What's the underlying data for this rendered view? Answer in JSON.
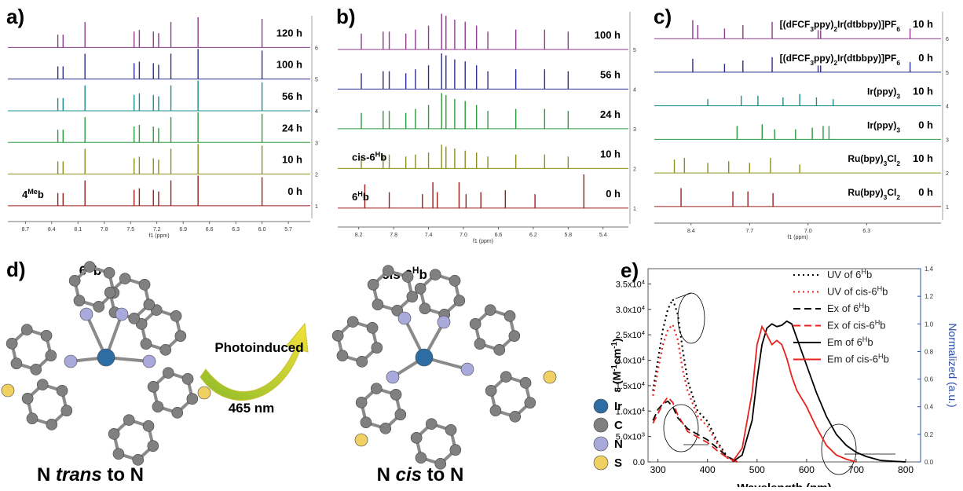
{
  "chart_data": [
    {
      "type": "nmr",
      "label": "a)",
      "xlabel": "f1 (ppm)",
      "xlim": [
        8.9,
        5.45
      ],
      "xticks": [
        8.7,
        8.4,
        8.1,
        7.8,
        7.5,
        7.2,
        6.9,
        6.6,
        6.3,
        {
          "value": 6,
          "label": "6.0"
        },
        5.7
      ],
      "ylim": [
        0.6,
        7.0
      ],
      "yticks": [
        6,
        5,
        4,
        3,
        2,
        1
      ],
      "series": [
        {
          "name": "120 h",
          "color": "#8e3a8e",
          "x": [
            8.33,
            8.27,
            8.02,
            7.46,
            7.4,
            7.24,
            7.18,
            7.04,
            6.73,
            6.0
          ],
          "values": [
            6.4,
            6.4,
            6.8,
            6.5,
            6.55,
            6.5,
            6.45,
            6.8,
            6.95,
            6.9
          ]
        },
        {
          "name": "100 h",
          "color": "#2e2e8e",
          "x": [
            8.33,
            8.27,
            8.02,
            7.46,
            7.4,
            7.24,
            7.18,
            7.04,
            6.73,
            6.0
          ],
          "values": [
            5.4,
            5.4,
            5.8,
            5.5,
            5.55,
            5.5,
            5.45,
            5.8,
            5.95,
            5.9
          ]
        },
        {
          "name": "56 h",
          "color": "#1f8c8c",
          "x": [
            8.33,
            8.27,
            8.02,
            7.46,
            7.4,
            7.24,
            7.18,
            7.04,
            6.73,
            6.0
          ],
          "values": [
            4.4,
            4.4,
            4.8,
            4.5,
            4.55,
            4.5,
            4.45,
            4.8,
            4.95,
            4.9
          ]
        },
        {
          "name": "24 h",
          "color": "#2e9a3e",
          "x": [
            8.33,
            8.27,
            8.02,
            7.46,
            7.4,
            7.24,
            7.18,
            7.04,
            6.73,
            6.0
          ],
          "values": [
            3.4,
            3.4,
            3.8,
            3.5,
            3.55,
            3.5,
            3.45,
            3.8,
            3.95,
            3.9
          ]
        },
        {
          "name": "10 h",
          "color": "#8a8f1e",
          "x": [
            8.33,
            8.27,
            8.02,
            7.46,
            7.4,
            7.24,
            7.18,
            7.04,
            6.73,
            6.0
          ],
          "values": [
            2.4,
            2.4,
            2.8,
            2.5,
            2.55,
            2.5,
            2.45,
            2.8,
            2.95,
            2.9
          ]
        },
        {
          "name": "0 h",
          "color": "#9a1e1e",
          "annotation": [
            "4",
            "Me",
            "b"
          ],
          "x": [
            8.33,
            8.27,
            8.02,
            7.46,
            7.4,
            7.24,
            7.18,
            7.04,
            6.73,
            6.0
          ],
          "values": [
            1.4,
            1.4,
            1.8,
            1.5,
            1.55,
            1.5,
            1.45,
            1.8,
            1.95,
            1.9
          ]
        }
      ]
    },
    {
      "type": "nmr",
      "label": "b)",
      "xlabel": "f1 (ppm)",
      "xlim": [
        8.44,
        5.11
      ],
      "xticks": [
        8.2,
        7.8,
        7.4,
        {
          "value": 7,
          "label": "7.0"
        },
        6.6,
        6.2,
        5.8,
        5.4
      ],
      "ylim": [
        0.6,
        5.95
      ],
      "yticks": [
        5,
        4,
        3,
        2,
        1
      ],
      "series": [
        {
          "name": "100 h",
          "color": "#8e3a8e",
          "x": [
            8.17,
            7.92,
            7.85,
            7.66,
            7.55,
            7.4,
            7.25,
            7.2,
            7.1,
            6.98,
            6.85,
            6.72,
            6.4,
            6.07,
            5.8
          ],
          "values": [
            5.4,
            5.45,
            5.45,
            5.4,
            5.5,
            5.6,
            5.9,
            5.85,
            5.75,
            5.7,
            5.6,
            5.45,
            5.5,
            5.5,
            5.45
          ]
        },
        {
          "name": "56 h",
          "color": "#2e2e8e",
          "x": [
            8.17,
            7.92,
            7.85,
            7.66,
            7.55,
            7.4,
            7.25,
            7.2,
            7.1,
            6.98,
            6.85,
            6.72,
            6.4,
            6.07,
            5.8
          ],
          "values": [
            4.4,
            4.45,
            4.45,
            4.4,
            4.5,
            4.6,
            4.9,
            4.85,
            4.75,
            4.7,
            4.6,
            4.45,
            4.5,
            4.5,
            4.45
          ]
        },
        {
          "name": "24 h",
          "color": "#2e9a3e",
          "x": [
            8.17,
            7.92,
            7.85,
            7.66,
            7.55,
            7.4,
            7.25,
            7.2,
            7.1,
            6.98,
            6.85,
            6.72,
            6.4,
            6.07,
            5.8
          ],
          "values": [
            3.4,
            3.45,
            3.45,
            3.4,
            3.5,
            3.6,
            3.9,
            3.85,
            3.75,
            3.7,
            3.6,
            3.45,
            3.5,
            3.5,
            3.45
          ]
        },
        {
          "name": "10 h",
          "color": "#8a8f1e",
          "annotation": [
            "cis-6",
            "H",
            "b"
          ],
          "x": [
            8.17,
            7.92,
            7.85,
            7.66,
            7.55,
            7.4,
            7.25,
            7.2,
            7.1,
            6.98,
            6.85,
            6.72,
            6.4,
            6.07,
            5.8
          ],
          "values": [
            2.3,
            2.35,
            2.35,
            2.3,
            2.35,
            2.4,
            2.6,
            2.55,
            2.5,
            2.45,
            2.4,
            2.3,
            2.35,
            2.35,
            2.3
          ]
        },
        {
          "name": "0 h",
          "color": "#9a1e1e",
          "annotation": [
            "6",
            "H",
            "b"
          ],
          "x": [
            8.13,
            7.85,
            7.47,
            7.35,
            7.3,
            7.05,
            6.97,
            6.8,
            6.52,
            6.18,
            5.62
          ],
          "values": [
            1.6,
            1.4,
            1.35,
            1.65,
            1.4,
            1.65,
            1.35,
            1.4,
            1.45,
            1.35,
            1.85
          ]
        }
      ]
    },
    {
      "type": "nmr",
      "label": "c)",
      "xlabel": "f1 (ppm)",
      "xlim": [
        8.84,
        5.41
      ],
      "xticks": [
        8.4,
        7.7,
        {
          "value": 7,
          "label": "7.0"
        },
        6.3
      ],
      "ylim": [
        0.6,
        6.8
      ],
      "yticks": [
        6,
        5,
        4,
        3,
        2,
        1
      ],
      "series": [
        {
          "name": "10 h",
          "compound": [
            "[(dFCF",
            "3",
            "ppy)",
            "2",
            "Ir(dtbbpy)]PF",
            "6"
          ],
          "color": "#8e3a8e",
          "x": [
            8.38,
            8.32,
            8.0,
            7.78,
            7.43,
            6.88,
            6.85,
            5.78
          ],
          "values": [
            6.55,
            6.4,
            6.3,
            6.4,
            6.5,
            6.25,
            6.25,
            6.3
          ]
        },
        {
          "name": "0 h",
          "compound": [
            "[(dFCF",
            "3",
            "ppy)",
            "2",
            "Ir(dtbbpy)]PF",
            "6"
          ],
          "color": "#2e2e8e",
          "x": [
            8.38,
            8.0,
            7.78,
            7.43,
            6.88,
            6.85,
            5.78
          ],
          "values": [
            5.4,
            5.25,
            5.35,
            5.45,
            5.2,
            5.2,
            5.3
          ]
        },
        {
          "name": "10 h",
          "compound": [
            "Ir(ppy)",
            "3"
          ],
          "color": "#1f8c8c",
          "x": [
            8.2,
            7.8,
            7.6,
            7.3,
            7.1,
            6.9,
            6.7
          ],
          "values": [
            4.2,
            4.3,
            4.3,
            4.25,
            4.35,
            4.25,
            4.2
          ]
        },
        {
          "name": "0 h",
          "compound": [
            "Ir(ppy)",
            "3"
          ],
          "color": "#2e9a3e",
          "x": [
            7.85,
            7.55,
            7.4,
            7.15,
            6.95,
            6.82,
            6.75
          ],
          "values": [
            3.4,
            3.45,
            3.3,
            3.3,
            3.35,
            3.4,
            3.4
          ]
        },
        {
          "name": "10 h",
          "compound": [
            "Ru(bpy)",
            "3",
            "Cl",
            "2"
          ],
          "color": "#8a8f1e",
          "x": [
            8.6,
            8.48,
            8.2,
            7.95,
            7.7,
            7.45,
            7.1
          ],
          "values": [
            2.4,
            2.45,
            2.3,
            2.35,
            2.3,
            2.45,
            2.25
          ]
        },
        {
          "name": "0 h",
          "compound": [
            "Ru(bpy)",
            "3",
            "Cl",
            "2"
          ],
          "color": "#9a1e1e",
          "x": [
            8.52,
            7.9,
            7.72,
            7.42
          ],
          "values": [
            1.55,
            1.45,
            1.45,
            1.4
          ]
        }
      ]
    },
    {
      "type": "line",
      "label": "e)",
      "xlabel": "Wavelength (nm)",
      "ylabel": [
        "ε (M",
        "-1",
        "cm",
        "-1",
        ")"
      ],
      "y2label": "Normalized (a.u.)",
      "xlim": [
        280,
        830
      ],
      "xticks": [
        300,
        400,
        500,
        600,
        700,
        800
      ],
      "ylim": [
        0,
        38000
      ],
      "yticks": [
        {
          "value": 0,
          "label": "0.0"
        },
        {
          "value": 5000,
          "label": [
            "5.0x10",
            "3"
          ]
        },
        {
          "value": 10000,
          "label": [
            "1.0x10",
            "4"
          ]
        },
        {
          "value": 15000,
          "label": [
            "1.5x10",
            "4"
          ]
        },
        {
          "value": 20000,
          "label": [
            "2.0x10",
            "4"
          ]
        },
        {
          "value": 25000,
          "label": [
            "2.5x10",
            "4"
          ]
        },
        {
          "value": 30000,
          "label": [
            "3.0x10",
            "4"
          ]
        },
        {
          "value": 35000,
          "label": [
            "3.5x10",
            "4"
          ]
        }
      ],
      "y2lim": [
        0,
        1.4
      ],
      "y2ticks": [
        {
          "value": 0,
          "label": "0.0"
        },
        0.2,
        0.4,
        0.6,
        0.8,
        {
          "value": 1,
          "label": "1.0"
        },
        1.2,
        1.4
      ],
      "y2color": "#2a4fa8",
      "series": [
        {
          "name": [
            "UV of 6",
            "H",
            "b"
          ],
          "color": "#000000",
          "dash": "dotted",
          "x": [
            290,
            300,
            310,
            320,
            330,
            340,
            350,
            360,
            380,
            400,
            420,
            440,
            460
          ],
          "values": [
            14000,
            20000,
            26000,
            30000,
            32000,
            29000,
            22000,
            16000,
            10000,
            8000,
            4000,
            1000,
            0
          ]
        },
        {
          "name": [
            "UV of cis-6",
            "H",
            "b"
          ],
          "color": "#e8231f",
          "dash": "dotted",
          "x": [
            290,
            300,
            310,
            320,
            330,
            340,
            350,
            360,
            380,
            400,
            420,
            440,
            460
          ],
          "values": [
            13000,
            18000,
            23000,
            26000,
            27000,
            24000,
            18000,
            14000,
            9000,
            7000,
            3500,
            800,
            0
          ]
        },
        {
          "name": [
            "Ex of 6",
            "H",
            "b"
          ],
          "color": "#000000",
          "dash": "dashed",
          "axis": "y2",
          "x": [
            290,
            300,
            310,
            320,
            330,
            340,
            360,
            380,
            400,
            420,
            440,
            460
          ],
          "values": [
            0.3,
            0.38,
            0.42,
            0.44,
            0.4,
            0.32,
            0.24,
            0.2,
            0.16,
            0.1,
            0.04,
            0
          ]
        },
        {
          "name": [
            "Ex of cis-6",
            "H",
            "b"
          ],
          "color": "#e8231f",
          "dash": "dashed",
          "axis": "y2",
          "x": [
            290,
            300,
            310,
            320,
            330,
            340,
            360,
            380,
            400,
            420,
            440,
            460
          ],
          "values": [
            0.28,
            0.35,
            0.42,
            0.47,
            0.43,
            0.34,
            0.22,
            0.18,
            0.14,
            0.08,
            0.03,
            0
          ]
        },
        {
          "name": [
            "Em of 6",
            "H",
            "b"
          ],
          "color": "#000000",
          "dash": "solid",
          "axis": "y2",
          "x": [
            450,
            470,
            490,
            500,
            510,
            520,
            530,
            540,
            550,
            560,
            570,
            580,
            600,
            620,
            640,
            660,
            680,
            700,
            720,
            750,
            800
          ],
          "values": [
            0,
            0.05,
            0.3,
            0.6,
            0.85,
            0.97,
            1.0,
            0.98,
            0.99,
            1.02,
            1.0,
            0.9,
            0.7,
            0.5,
            0.33,
            0.2,
            0.12,
            0.07,
            0.04,
            0.01,
            0
          ]
        },
        {
          "name": [
            "Em of cis-6",
            "H",
            "b"
          ],
          "color": "#e8231f",
          "dash": "solid",
          "axis": "y2",
          "x": [
            450,
            470,
            490,
            500,
            510,
            520,
            530,
            540,
            550,
            560,
            570,
            580,
            600,
            620,
            640,
            660,
            680,
            700
          ],
          "values": [
            0,
            0.1,
            0.5,
            0.85,
            0.98,
            0.92,
            0.85,
            0.88,
            0.85,
            0.75,
            0.62,
            0.52,
            0.4,
            0.25,
            0.12,
            0.05,
            0.02,
            0
          ]
        }
      ]
    }
  ],
  "diagram": {
    "label": "d)",
    "left_title": [
      "6",
      "H",
      "b"
    ],
    "right_title": [
      "cis-6",
      "H",
      "b"
    ],
    "arrow_top": "Photoinduced",
    "arrow_bottom": "465 nm",
    "left_caption": [
      "N ",
      "trans",
      " to N"
    ],
    "right_caption": [
      "N ",
      "cis",
      " to N"
    ],
    "legend": [
      {
        "label": "Ir",
        "color": "#2e6da4"
      },
      {
        "label": "C",
        "color": "#808080"
      },
      {
        "label": "N",
        "color": "#a9a9dc"
      },
      {
        "label": "S",
        "color": "#f0d060"
      }
    ]
  }
}
